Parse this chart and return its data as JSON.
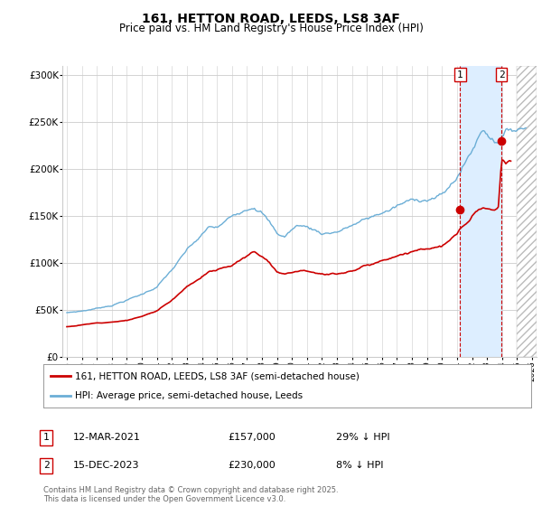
{
  "title": "161, HETTON ROAD, LEEDS, LS8 3AF",
  "subtitle": "Price paid vs. HM Land Registry's House Price Index (HPI)",
  "hpi_label": "HPI: Average price, semi-detached house, Leeds",
  "house_label": "161, HETTON ROAD, LEEDS, LS8 3AF (semi-detached house)",
  "footer": "Contains HM Land Registry data © Crown copyright and database right 2025.\nThis data is licensed under the Open Government Licence v3.0.",
  "annotation1_label": "1",
  "annotation1_date": "12-MAR-2021",
  "annotation1_price": "£157,000",
  "annotation1_hpi": "29% ↓ HPI",
  "annotation1_year": 2021.21,
  "annotation1_value": 157000,
  "annotation2_label": "2",
  "annotation2_date": "15-DEC-2023",
  "annotation2_price": "£230,000",
  "annotation2_hpi": "8% ↓ HPI",
  "annotation2_year": 2023.96,
  "annotation2_value": 230000,
  "hpi_color": "#6baed6",
  "house_color": "#cc0000",
  "annotation_color": "#cc0000",
  "shade_color": "#ddeeff",
  "background_color": "#ffffff",
  "grid_color": "#cccccc",
  "ylim": [
    0,
    310000
  ],
  "xlim_start": 1994.7,
  "xlim_end": 2026.3,
  "ytick_values": [
    0,
    50000,
    100000,
    150000,
    200000,
    250000,
    300000
  ],
  "ytick_labels": [
    "£0",
    "£50K",
    "£100K",
    "£150K",
    "£200K",
    "£250K",
    "£300K"
  ]
}
